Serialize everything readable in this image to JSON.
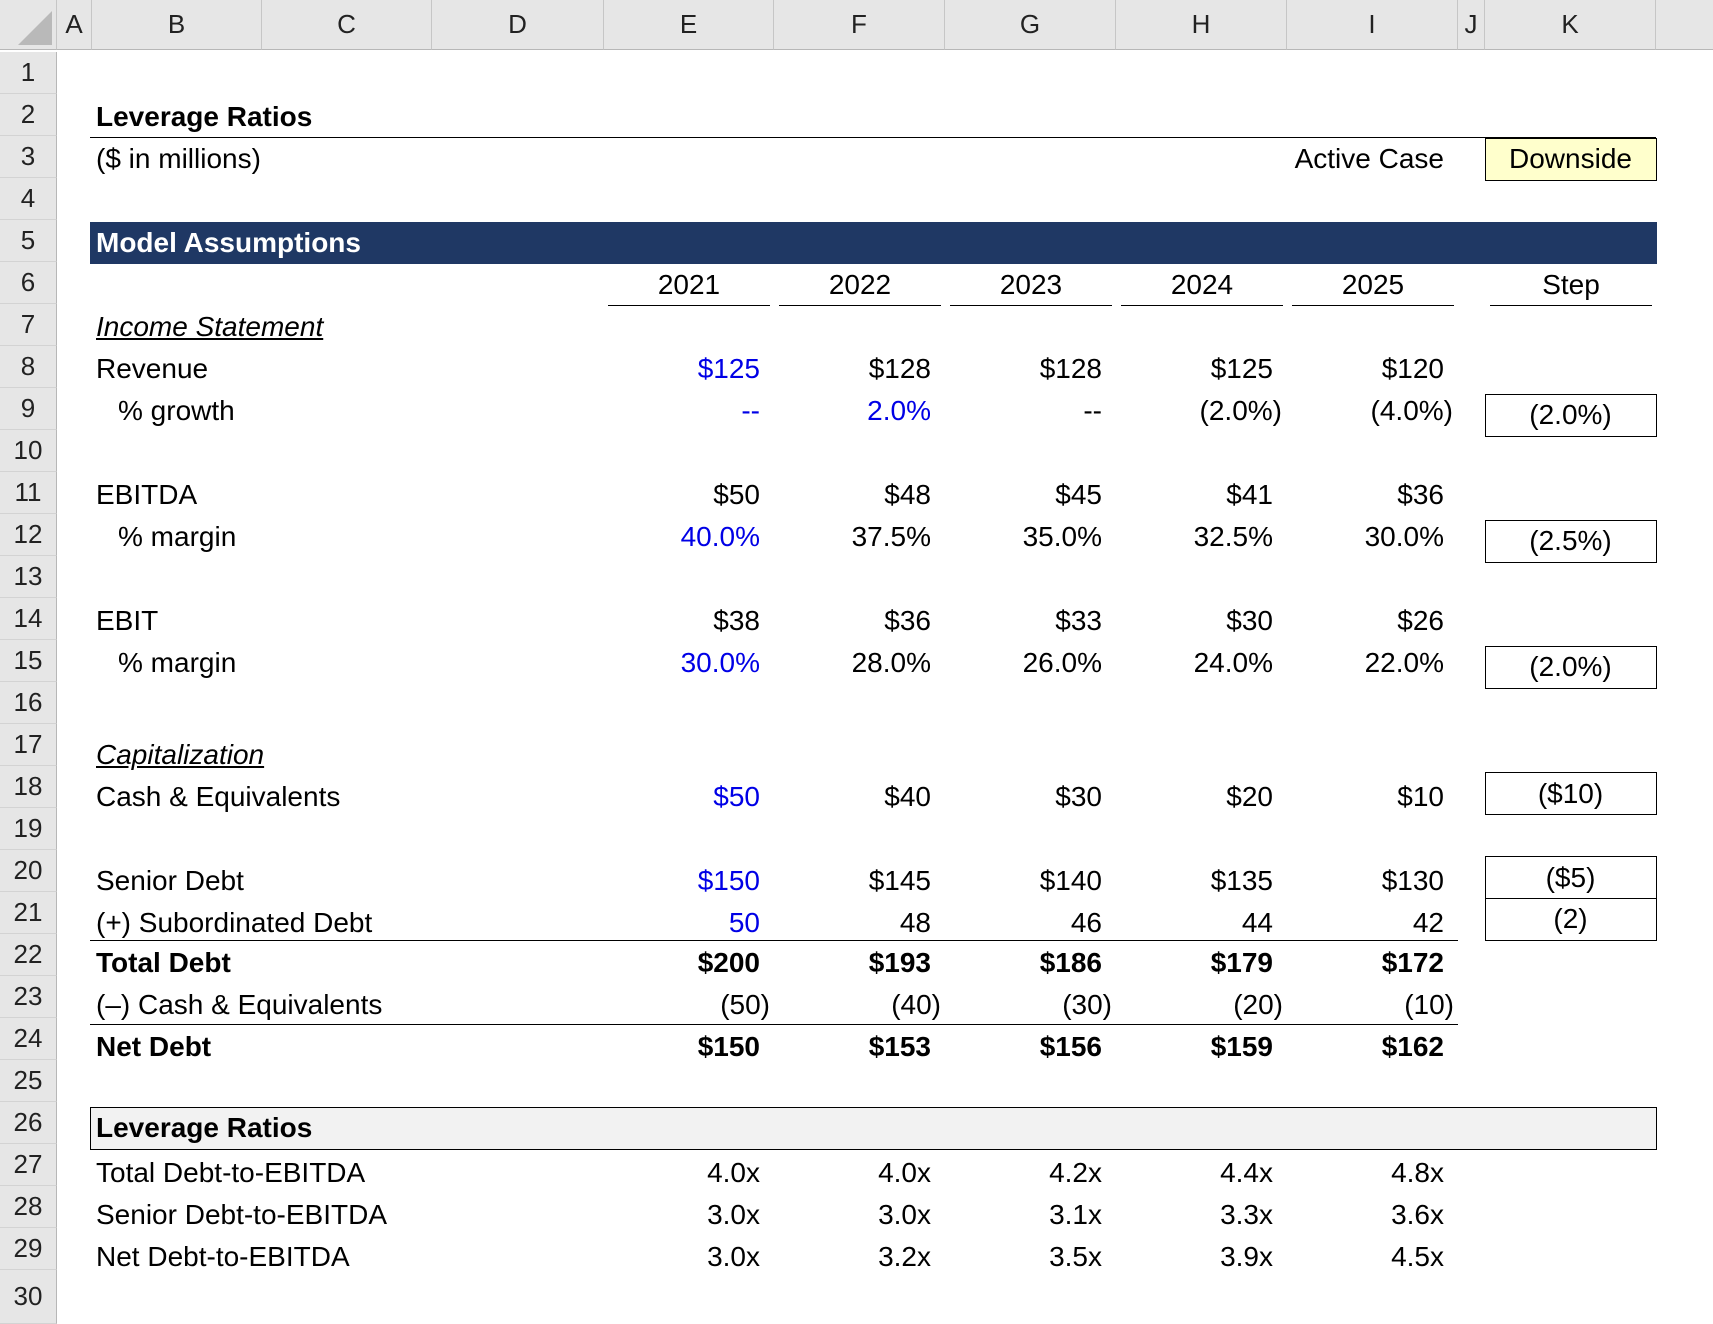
{
  "columns": [
    "A",
    "B",
    "C",
    "D",
    "E",
    "F",
    "G",
    "H",
    "I",
    "J",
    "K"
  ],
  "rows": [
    "1",
    "2",
    "3",
    "4",
    "5",
    "6",
    "7",
    "8",
    "9",
    "10",
    "11",
    "12",
    "13",
    "14",
    "15",
    "16",
    "17",
    "18",
    "19",
    "20",
    "21",
    "22",
    "23",
    "24",
    "25",
    "26",
    "27",
    "28",
    "29",
    "30"
  ],
  "title": "Leverage Ratios",
  "units": "($ in millions)",
  "active_case_label": "Active Case",
  "active_case_value": "Downside",
  "assumptions_header": "Model Assumptions",
  "years": [
    "2021",
    "2022",
    "2023",
    "2024",
    "2025"
  ],
  "step_label": "Step",
  "income_statement": {
    "section": "Income Statement",
    "revenue": {
      "label": "Revenue",
      "values": [
        "$125",
        "$128",
        "$128",
        "$125",
        "$120"
      ]
    },
    "growth": {
      "label": "% growth",
      "values": [
        "--",
        "2.0%",
        "--",
        "(2.0%)",
        "(4.0%)"
      ],
      "step": "(2.0%)"
    },
    "ebitda": {
      "label": "EBITDA",
      "values": [
        "$50",
        "$48",
        "$45",
        "$41",
        "$36"
      ]
    },
    "ebitda_margin": {
      "label": "% margin",
      "values": [
        "40.0%",
        "37.5%",
        "35.0%",
        "32.5%",
        "30.0%"
      ],
      "step": "(2.5%)"
    },
    "ebit": {
      "label": "EBIT",
      "values": [
        "$38",
        "$36",
        "$33",
        "$30",
        "$26"
      ]
    },
    "ebit_margin": {
      "label": "% margin",
      "values": [
        "30.0%",
        "28.0%",
        "26.0%",
        "24.0%",
        "22.0%"
      ],
      "step": "(2.0%)"
    }
  },
  "capitalization": {
    "section": "Capitalization",
    "cash": {
      "label": "Cash & Equivalents",
      "values": [
        "$50",
        "$40",
        "$30",
        "$20",
        "$10"
      ],
      "step": "($10)"
    },
    "senior_debt": {
      "label": "Senior Debt",
      "values": [
        "$150",
        "$145",
        "$140",
        "$135",
        "$130"
      ],
      "step": "($5)"
    },
    "sub_debt": {
      "label": "(+) Subordinated Debt",
      "values": [
        "50",
        "48",
        "46",
        "44",
        "42"
      ],
      "step": "(2)"
    },
    "total_debt": {
      "label": "Total Debt",
      "values": [
        "$200",
        "$193",
        "$186",
        "$179",
        "$172"
      ]
    },
    "less_cash": {
      "label": "(–) Cash & Equivalents",
      "values": [
        "(50)",
        "(40)",
        "(30)",
        "(20)",
        "(10)"
      ]
    },
    "net_debt": {
      "label": "Net Debt",
      "values": [
        "$150",
        "$153",
        "$156",
        "$159",
        "$162"
      ]
    }
  },
  "leverage": {
    "section": "Leverage Ratios",
    "total_debt_ebitda": {
      "label": "Total Debt-to-EBITDA",
      "values": [
        "4.0x",
        "4.0x",
        "4.2x",
        "4.4x",
        "4.8x"
      ]
    },
    "senior_debt_ebitda": {
      "label": "Senior Debt-to-EBITDA",
      "values": [
        "3.0x",
        "3.0x",
        "3.1x",
        "3.3x",
        "3.6x"
      ]
    },
    "net_debt_ebitda": {
      "label": "Net Debt-to-EBITDA",
      "values": [
        "3.0x",
        "3.2x",
        "3.5x",
        "3.9x",
        "4.5x"
      ]
    }
  },
  "colors": {
    "header_bar": "#1f3864",
    "input_blue": "#0000e6",
    "active_case_fill": "#ffffcc",
    "leverage_header_fill": "#f2f2f2"
  }
}
